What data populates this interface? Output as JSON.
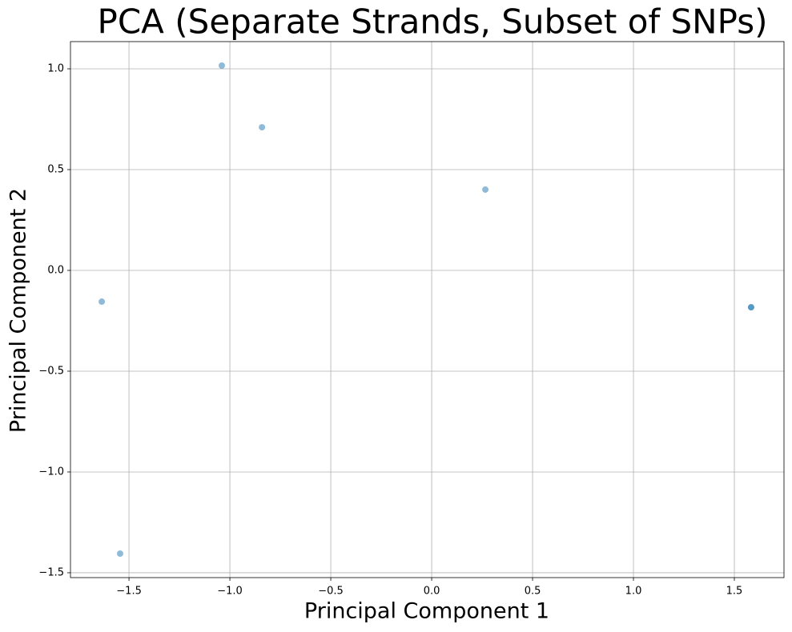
{
  "chart_data": {
    "type": "scatter",
    "title": "PCA (Separate Strands, Subset of SNPs)",
    "x_label": "Principal Component 1",
    "y_label": "Principal Component 2",
    "x": [
      -1.04,
      -0.841,
      0.266,
      -1.635,
      -1.544,
      1.583,
      1.583
    ],
    "values": [
      1.016,
      0.71,
      0.401,
      -0.155,
      -1.405,
      -0.183,
      -0.183
    ],
    "color": "#1f77b4",
    "alpha": 0.5,
    "xlim": [
      -1.79,
      1.746
    ],
    "xticks": [
      {
        "value": -1.5,
        "label": "−1.5"
      },
      {
        "value": -1.0,
        "label": "−1.0"
      },
      {
        "value": -0.5,
        "label": "−0.5"
      },
      {
        "value": 0,
        "label": "0.0"
      },
      0.5,
      {
        "value": 1,
        "label": "1.0"
      },
      1.5
    ],
    "ylim": [
      -1.524,
      1.135
    ],
    "yticks": [
      {
        "value": -1.5,
        "label": "−1.5"
      },
      {
        "value": -1.0,
        "label": "−1.0"
      },
      {
        "value": -0.5,
        "label": "−0.5"
      },
      {
        "value": 0,
        "label": "0.0"
      },
      0.5,
      {
        "value": 1,
        "label": "1.0"
      }
    ],
    "grid": true
  }
}
